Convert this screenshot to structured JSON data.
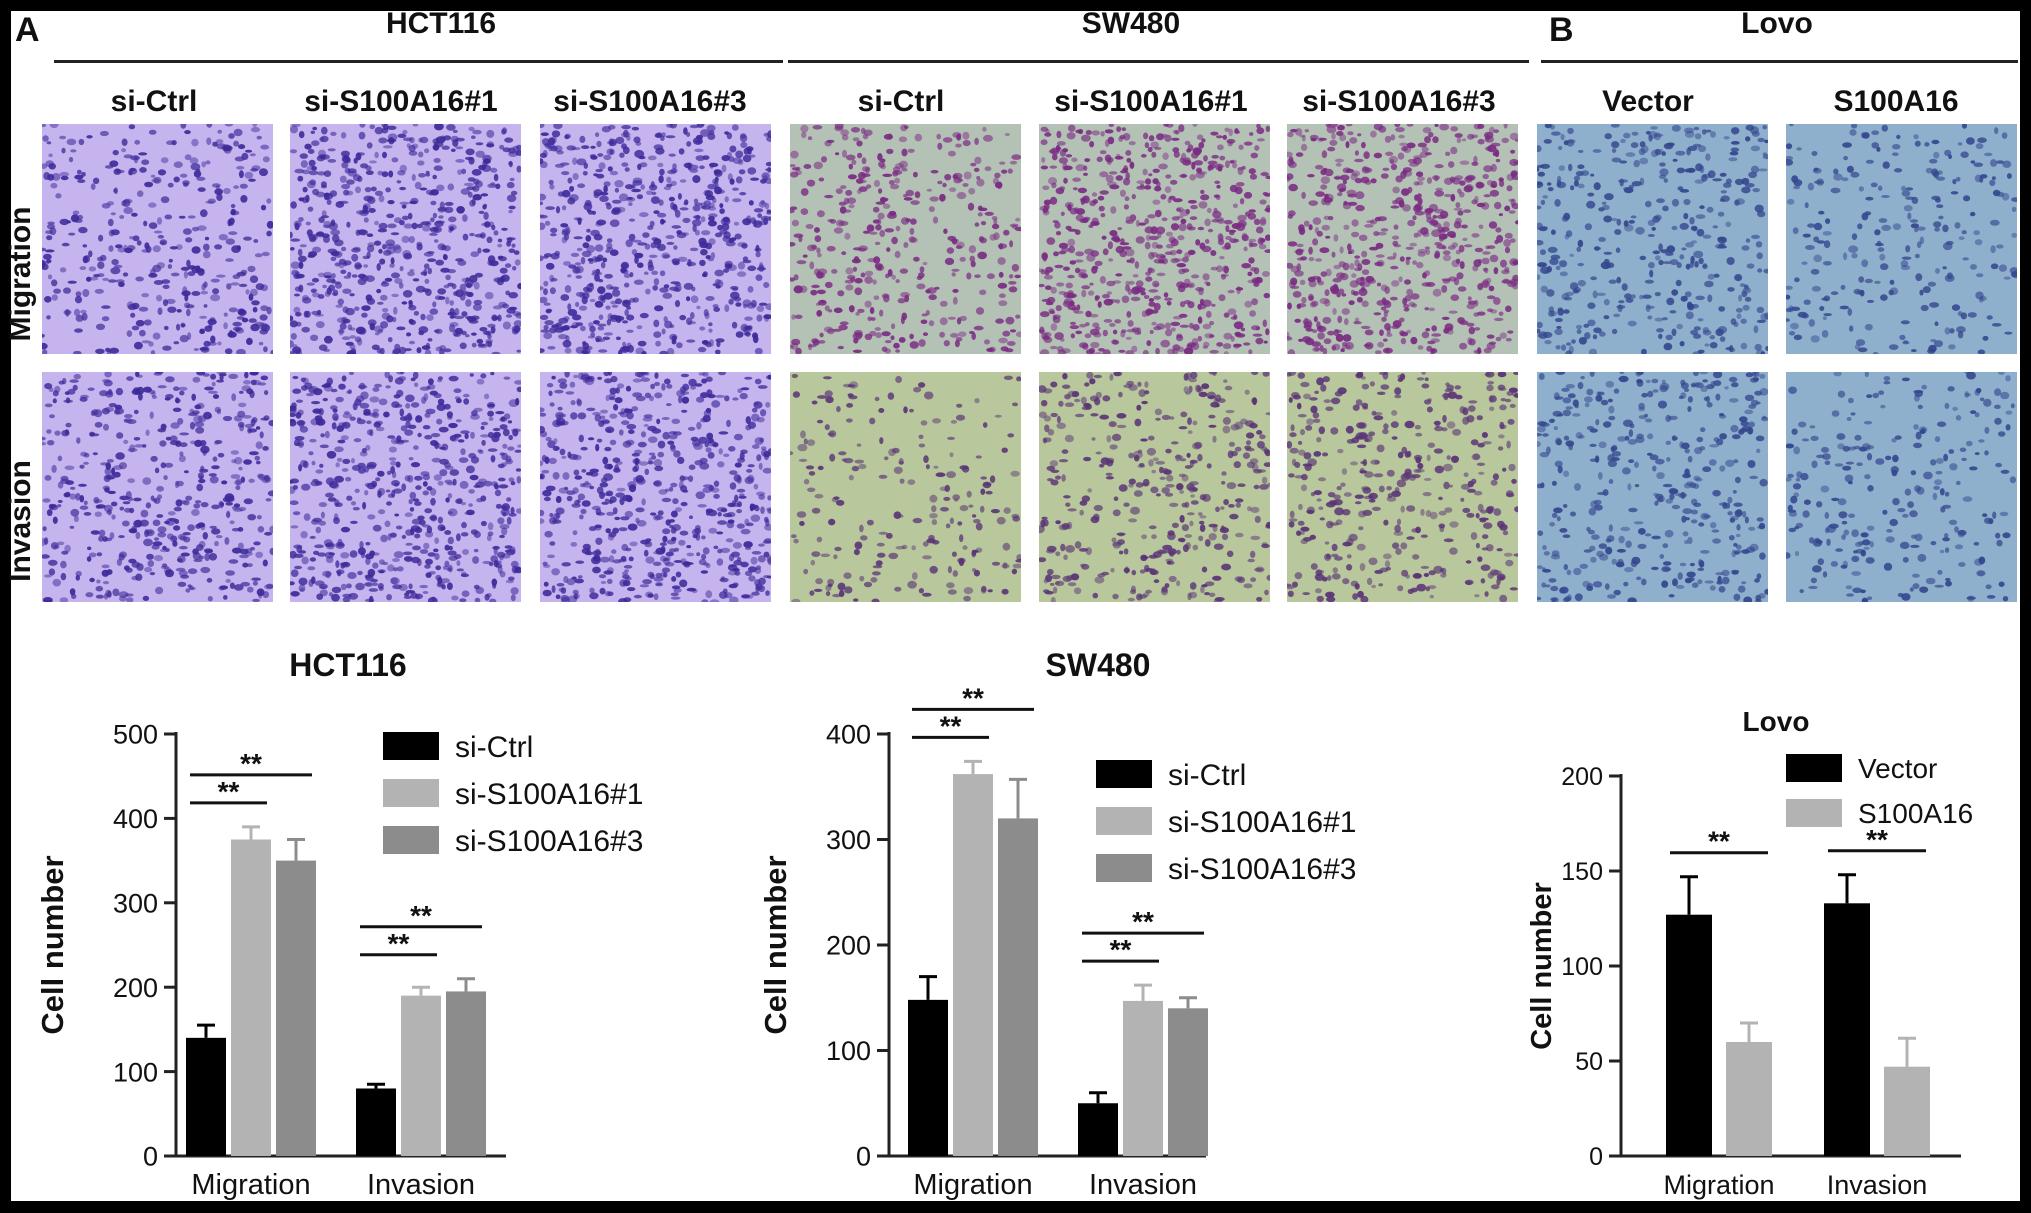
{
  "panel_labels": {
    "a": "A",
    "b": "B"
  },
  "cell_lines": {
    "hct116": "HCT116",
    "sw480": "SW480",
    "lovo": "Lovo"
  },
  "row_labels": {
    "migration": "Migration",
    "invasion": "Invasion"
  },
  "column_labels": {
    "hct116": [
      "si-Ctrl",
      "si-S100A16#1",
      "si-S100A16#3"
    ],
    "sw480": [
      "si-Ctrl",
      "si-S100A16#1",
      "si-S100A16#3"
    ],
    "lovo": [
      "Vector",
      "S100A16"
    ]
  },
  "micrograph_colors": {
    "hct116": {
      "bg": "#c6b4ee",
      "cell": "#3d2a9a"
    },
    "sw480_migration": {
      "bg": "#b4c2b6",
      "cell": "#7a2a82"
    },
    "sw480_invasion": {
      "bg": "#b8c89c",
      "cell": "#5a3476"
    },
    "lovo": {
      "bg": "#8fb0cc",
      "cell": "#34468e"
    }
  },
  "chart_data": [
    {
      "type": "bar",
      "title": "HCT116",
      "ylabel": "Cell number",
      "categories": [
        "Migration",
        "Invasion"
      ],
      "ylim": [
        0,
        500
      ],
      "yticks": [
        0,
        100,
        200,
        300,
        400,
        500
      ],
      "series": [
        {
          "name": "si-Ctrl",
          "color": "#000000",
          "values": [
            140,
            80
          ],
          "errors": [
            15,
            5
          ]
        },
        {
          "name": "si-S100A16#1",
          "color": "#b3b3b3",
          "values": [
            375,
            190
          ],
          "errors": [
            15,
            10
          ]
        },
        {
          "name": "si-S100A16#3",
          "color": "#8c8c8c",
          "values": [
            350,
            195
          ],
          "errors": [
            25,
            15
          ]
        }
      ],
      "significance": [
        {
          "category": 0,
          "from": 0,
          "to": 1,
          "label": "**"
        },
        {
          "category": 0,
          "from": 0,
          "to": 2,
          "label": "**"
        },
        {
          "category": 1,
          "from": 0,
          "to": 1,
          "label": "**"
        },
        {
          "category": 1,
          "from": 0,
          "to": 2,
          "label": "**"
        }
      ],
      "legend": "top-right"
    },
    {
      "type": "bar",
      "title": "SW480",
      "ylabel": "Cell number",
      "categories": [
        "Migration",
        "Invasion"
      ],
      "ylim": [
        0,
        400
      ],
      "yticks": [
        0,
        100,
        200,
        300,
        400
      ],
      "series": [
        {
          "name": "si-Ctrl",
          "color": "#000000",
          "values": [
            148,
            50
          ],
          "errors": [
            22,
            10
          ]
        },
        {
          "name": "si-S100A16#1",
          "color": "#b3b3b3",
          "values": [
            362,
            147
          ],
          "errors": [
            12,
            15
          ]
        },
        {
          "name": "si-S100A16#3",
          "color": "#8c8c8c",
          "values": [
            320,
            140
          ],
          "errors": [
            37,
            10
          ]
        }
      ],
      "significance": [
        {
          "category": 0,
          "from": 0,
          "to": 1,
          "label": "**"
        },
        {
          "category": 0,
          "from": 0,
          "to": 2,
          "label": "**"
        },
        {
          "category": 1,
          "from": 0,
          "to": 1,
          "label": "**"
        },
        {
          "category": 1,
          "from": 0,
          "to": 2,
          "label": "**"
        }
      ],
      "legend": "top-right"
    },
    {
      "type": "bar",
      "title": "Lovo",
      "ylabel": "Cell number",
      "categories": [
        "Migration",
        "Invasion"
      ],
      "ylim": [
        0,
        200
      ],
      "yticks": [
        0,
        50,
        100,
        150,
        200
      ],
      "series": [
        {
          "name": "Vector",
          "color": "#000000",
          "values": [
            127,
            133
          ],
          "errors": [
            20,
            15
          ]
        },
        {
          "name": "S100A16",
          "color": "#b3b3b3",
          "values": [
            60,
            47
          ],
          "errors": [
            10,
            15
          ]
        }
      ],
      "significance": [
        {
          "category": 0,
          "from": 0,
          "to": 1,
          "label": "**"
        },
        {
          "category": 1,
          "from": 0,
          "to": 1,
          "label": "**"
        }
      ],
      "legend": "top-right"
    }
  ]
}
